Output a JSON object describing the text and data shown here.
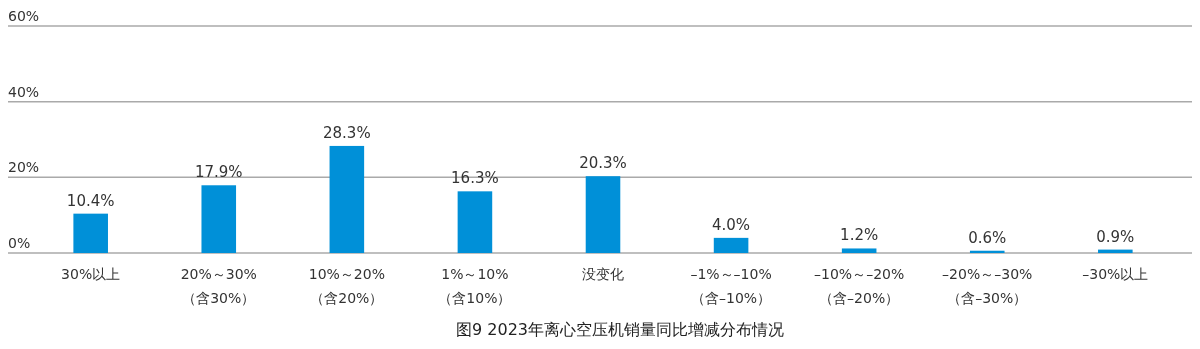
{
  "chart_data": {
    "type": "bar",
    "title": "图9 2023年离心空压机销量同比增减分布情况",
    "categories": [
      "30%以上",
      "20%～30%\n（含30%）",
      "10%～20%\n（含20%）",
      "1%～10%\n（含10%）",
      "没变化",
      "–1%～–10%\n（含–10%）",
      "–10%～–20%\n（含–20%）",
      "–20%～–30%\n（含–30%）",
      "–30%以上"
    ],
    "values": [
      10.4,
      17.9,
      28.3,
      16.3,
      20.3,
      4.0,
      1.2,
      0.6,
      0.9
    ],
    "value_labels": [
      "10.4%",
      "17.9%",
      "28.3%",
      "16.3%",
      "20.3%",
      "4.0%",
      "1.2%",
      "0.6%",
      "0.9%"
    ],
    "color": "#0090d8",
    "ylim": [
      0,
      60
    ],
    "yticks": [
      {
        "value": 0,
        "label": "0%"
      },
      {
        "value": 20,
        "label": "20%"
      },
      {
        "value": 40,
        "label": "40%"
      },
      {
        "value": 60,
        "label": "60%"
      }
    ],
    "grid": "y"
  }
}
